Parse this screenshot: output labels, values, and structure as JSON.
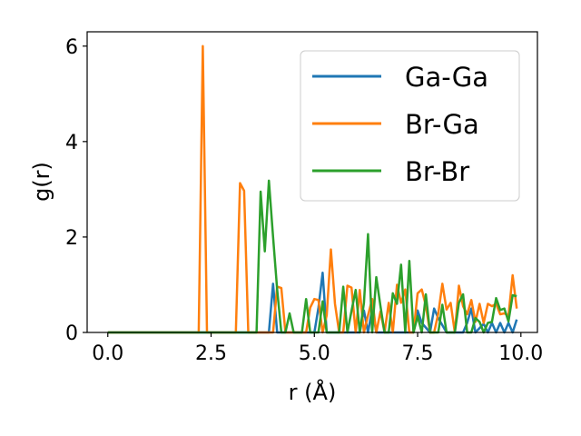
{
  "chart_data": {
    "type": "line",
    "title": "",
    "xlabel": "r (Å)",
    "ylabel": "g(r)",
    "xlim": [
      -0.5,
      10.4
    ],
    "ylim": [
      0,
      6.3
    ],
    "xticks": [
      0.0,
      2.5,
      5.0,
      7.5,
      10.0
    ],
    "xtick_labels": [
      "0.0",
      "2.5",
      "5.0",
      "7.5",
      "10.0"
    ],
    "yticks": [
      0,
      2,
      4,
      6
    ],
    "ytick_labels": [
      "0",
      "2",
      "4",
      "6"
    ],
    "grid": false,
    "legend_position": "top-right",
    "series": [
      {
        "name": "Ga-Ga",
        "color": "#1f77b4",
        "x": [
          0.0,
          3.8,
          3.9,
          4.0,
          4.1,
          4.2,
          4.3,
          5.0,
          5.1,
          5.2,
          5.3,
          6.0,
          6.1,
          6.2,
          6.3,
          6.4,
          6.5,
          6.6,
          7.2,
          7.4,
          7.5,
          7.6,
          7.8,
          7.9,
          8.0,
          8.2,
          8.3,
          8.6,
          8.7,
          8.8,
          8.9,
          9.1,
          9.2,
          9.3,
          9.4,
          9.5,
          9.6,
          9.7,
          9.8,
          9.9
        ],
        "y": [
          0.0,
          0.0,
          0.0,
          1.02,
          0.0,
          0.0,
          0.0,
          0.0,
          0.52,
          1.25,
          0.0,
          0.0,
          0.0,
          0.46,
          0.0,
          0.5,
          0.0,
          0.0,
          0.0,
          0.0,
          0.46,
          0.2,
          0.0,
          0.5,
          0.3,
          0.0,
          0.0,
          0.0,
          0.2,
          0.5,
          0.0,
          0.18,
          0.0,
          0.2,
          0.0,
          0.2,
          0.0,
          0.2,
          0.0,
          0.27
        ]
      },
      {
        "name": "Br-Ga",
        "color": "#ff7f0e",
        "x": [
          0.0,
          2.2,
          2.3,
          2.4,
          3.1,
          3.2,
          3.3,
          3.4,
          4.0,
          4.1,
          4.2,
          4.3,
          4.8,
          4.9,
          5.0,
          5.1,
          5.2,
          5.3,
          5.4,
          5.5,
          5.6,
          5.7,
          5.8,
          5.9,
          6.0,
          6.1,
          6.2,
          6.3,
          6.4,
          6.5,
          6.6,
          6.7,
          6.8,
          6.9,
          7.0,
          7.1,
          7.2,
          7.3,
          7.4,
          7.5,
          7.6,
          7.7,
          7.8,
          7.9,
          8.0,
          8.1,
          8.2,
          8.3,
          8.4,
          8.5,
          8.6,
          8.7,
          8.8,
          8.9,
          9.0,
          9.1,
          9.2,
          9.3,
          9.4,
          9.5,
          9.6,
          9.7,
          9.8,
          9.9
        ],
        "y": [
          0.0,
          0.0,
          6.0,
          0.0,
          0.0,
          3.13,
          2.97,
          0.0,
          0.0,
          0.96,
          0.93,
          0.0,
          0.0,
          0.52,
          0.7,
          0.68,
          0.0,
          0.36,
          1.74,
          0.6,
          0.0,
          0.0,
          0.98,
          0.94,
          0.0,
          0.89,
          0.0,
          0.36,
          0.7,
          0.0,
          0.44,
          0.0,
          0.62,
          0.0,
          1.0,
          0.62,
          0.9,
          0.0,
          0.0,
          0.82,
          0.9,
          0.56,
          0.0,
          0.0,
          0.4,
          1.02,
          0.48,
          0.62,
          0.0,
          0.98,
          0.55,
          0.38,
          0.68,
          0.22,
          0.6,
          0.2,
          0.6,
          0.55,
          0.6,
          0.38,
          0.4,
          0.35,
          1.2,
          0.5
        ]
      },
      {
        "name": "Br-Br",
        "color": "#2ca02c",
        "x": [
          0.0,
          3.6,
          3.7,
          3.8,
          3.9,
          4.0,
          4.1,
          4.2,
          4.3,
          4.4,
          4.5,
          4.6,
          4.7,
          4.8,
          4.9,
          5.0,
          5.1,
          5.2,
          5.3,
          5.4,
          5.5,
          5.6,
          5.7,
          5.8,
          5.9,
          6.0,
          6.1,
          6.2,
          6.3,
          6.4,
          6.5,
          6.6,
          6.7,
          6.8,
          6.9,
          7.0,
          7.1,
          7.2,
          7.3,
          7.4,
          7.5,
          7.6,
          7.7,
          7.8,
          7.9,
          8.0,
          8.1,
          8.2,
          8.3,
          8.4,
          8.5,
          8.6,
          8.7,
          8.8,
          8.9,
          9.0,
          9.1,
          9.2,
          9.3,
          9.4,
          9.5,
          9.6,
          9.7,
          9.8,
          9.9
        ],
        "y": [
          0.0,
          0.0,
          2.95,
          1.7,
          3.18,
          2.0,
          0.9,
          0.0,
          0.0,
          0.4,
          0.0,
          0.0,
          0.0,
          0.7,
          0.0,
          0.0,
          0.0,
          0.65,
          0.0,
          0.0,
          0.0,
          0.0,
          0.96,
          0.0,
          0.45,
          0.89,
          0.0,
          0.62,
          2.06,
          0.0,
          1.16,
          0.55,
          0.0,
          0.0,
          0.82,
          0.6,
          1.42,
          0.0,
          1.5,
          0.0,
          0.34,
          0.0,
          0.8,
          0.0,
          0.0,
          0.0,
          0.58,
          0.0,
          0.0,
          0.0,
          0.62,
          0.8,
          0.0,
          0.0,
          0.3,
          0.22,
          0.0,
          0.2,
          0.22,
          0.72,
          0.47,
          0.5,
          0.23,
          0.78,
          0.76
        ]
      }
    ]
  }
}
